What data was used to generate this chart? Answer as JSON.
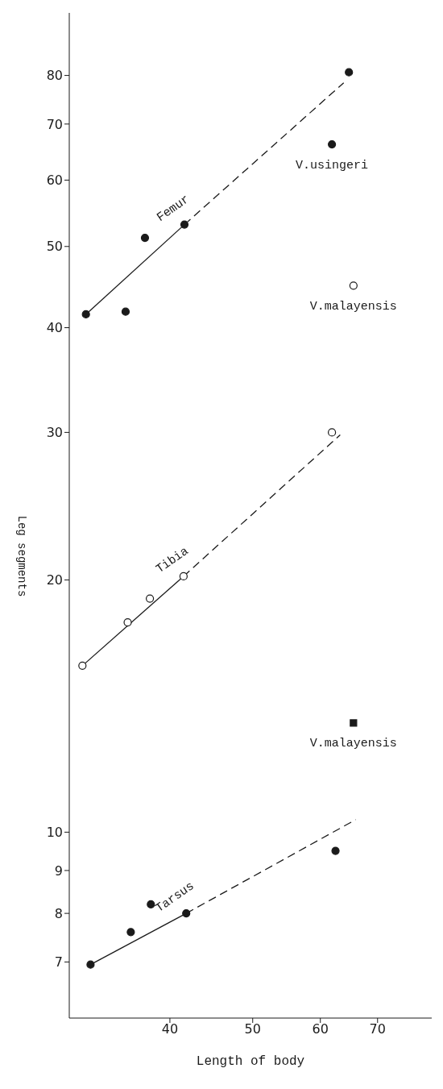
{
  "chart_data": {
    "type": "scatter",
    "xlabel": "Length of body",
    "ylabel": "Leg segments",
    "log": "xy",
    "xlim": [
      30.5,
      81
    ],
    "ylim": [
      6,
      95
    ],
    "xticks": [
      40,
      50,
      60,
      70
    ],
    "yticks": [
      7,
      8,
      9,
      10,
      20,
      30,
      40,
      50,
      60,
      70,
      80
    ],
    "grid": false,
    "legend": false,
    "series": [
      {
        "marker": "circle",
        "color": "#1a1a1a",
        "x": [
          31.9,
          35.5,
          37.4,
          41.6,
          64.8
        ],
        "values": [
          41.5,
          41.8,
          51.2,
          53.1,
          80.7
        ]
      },
      {
        "name": "Femur",
        "type": "line",
        "line_style": "solid",
        "marker": "none",
        "color": "#1a1a1a",
        "x": [
          31.9,
          41.6
        ],
        "values": [
          41.5,
          53.1
        ]
      },
      {
        "type": "line",
        "line_style": "dashed",
        "marker": "none",
        "color": "#1a1a1a",
        "x": [
          41.6,
          63.9
        ],
        "values": [
          53.1,
          78.4
        ]
      },
      {
        "name": "V.usingeri",
        "marker": "circle",
        "color": "#1a1a1a",
        "x": [
          61.9
        ],
        "values": [
          66.2
        ]
      },
      {
        "name": "V.malayensis",
        "marker": "circle",
        "color": "#ffffff",
        "x": [
          65.6
        ],
        "values": [
          44.9
        ]
      },
      {
        "marker": "circle",
        "color": "#ffffff",
        "x": [
          31.6,
          35.7,
          37.9,
          41.5,
          61.9
        ],
        "values": [
          15.8,
          17.8,
          19.0,
          20.2,
          30.0
        ]
      },
      {
        "name": "Tibia",
        "type": "line",
        "line_style": "solid",
        "marker": "none",
        "color": "#1a1a1a",
        "x": [
          31.6,
          41.5
        ],
        "values": [
          15.8,
          20.2
        ]
      },
      {
        "type": "line",
        "line_style": "dashed",
        "marker": "none",
        "color": "#1a1a1a",
        "x": [
          41.5,
          63.3
        ],
        "values": [
          20.2,
          29.8
        ]
      },
      {
        "marker": "circle",
        "color": "#1a1a1a",
        "x": [
          32.3,
          36.0,
          38.0,
          41.8,
          62.5
        ],
        "values": [
          6.95,
          7.6,
          8.2,
          8.0,
          9.5
        ]
      },
      {
        "name": "Tarsus",
        "type": "line",
        "line_style": "solid",
        "marker": "none",
        "color": "#1a1a1a",
        "x": [
          32.3,
          41.8
        ],
        "values": [
          6.95,
          8.0
        ]
      },
      {
        "type": "line",
        "line_style": "dashed",
        "marker": "none",
        "color": "#1a1a1a",
        "x": [
          41.8,
          66.0
        ],
        "values": [
          8.0,
          10.35
        ]
      },
      {
        "name": "V.malayensis",
        "marker": "square",
        "color": "#1a1a1a",
        "x": [
          65.6
        ],
        "values": [
          13.5
        ]
      }
    ]
  }
}
